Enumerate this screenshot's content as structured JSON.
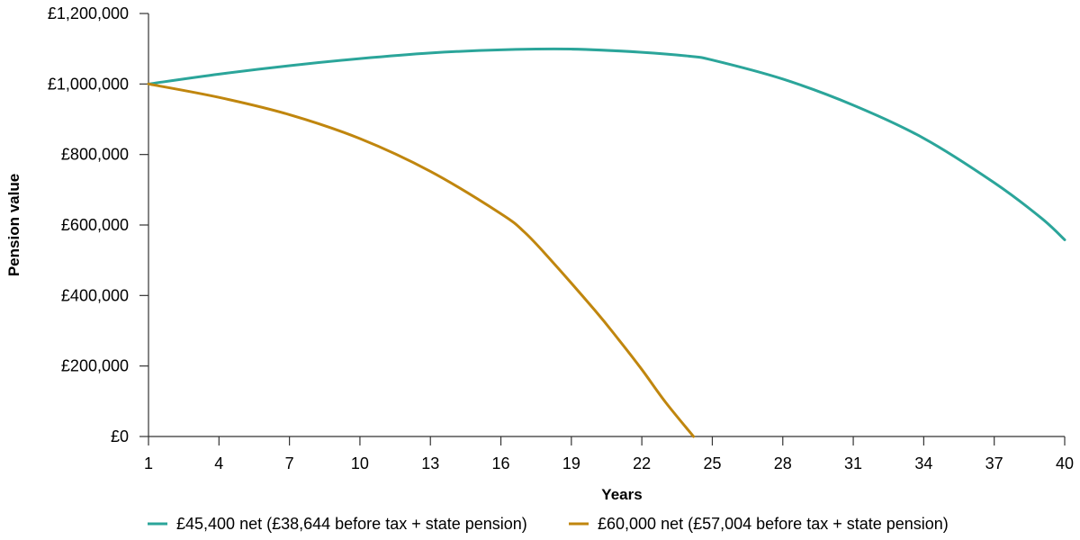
{
  "chart_data": {
    "type": "line",
    "title": "",
    "xlabel": "Years",
    "ylabel": "Pension value",
    "x_ticks": [
      "1",
      "4",
      "7",
      "10",
      "13",
      "16",
      "19",
      "22",
      "25",
      "28",
      "31",
      "34",
      "37",
      "40"
    ],
    "y_ticks": [
      "£0",
      "£200,000",
      "£400,000",
      "£600,000",
      "£800,000",
      "£1,000,000",
      "£1,200,000"
    ],
    "xlim": [
      1,
      40
    ],
    "ylim": [
      0,
      1200000
    ],
    "grid": false,
    "legend_position": "bottom",
    "series": [
      {
        "name": "£45,400 net (£38,644 before tax + state pension)",
        "color": "#2ba59a",
        "points": [
          [
            1,
            1000000
          ],
          [
            4,
            1028000
          ],
          [
            7,
            1052000
          ],
          [
            10,
            1072000
          ],
          [
            13,
            1088000
          ],
          [
            16,
            1097000
          ],
          [
            19,
            1099000
          ],
          [
            22,
            1090000
          ],
          [
            24,
            1079000
          ],
          [
            25,
            1068000
          ],
          [
            28,
            1014000
          ],
          [
            31,
            940000
          ],
          [
            34,
            846000
          ],
          [
            37,
            720000
          ],
          [
            39,
            620000
          ],
          [
            40,
            558000
          ]
        ]
      },
      {
        "name": "£60,000 net (£57,004 before tax + state pension)",
        "color": "#c0860e",
        "points": [
          [
            1,
            1000000
          ],
          [
            4,
            962000
          ],
          [
            7,
            913000
          ],
          [
            10,
            845000
          ],
          [
            13,
            752000
          ],
          [
            16,
            632000
          ],
          [
            17,
            580000
          ],
          [
            18,
            510000
          ],
          [
            20,
            358000
          ],
          [
            21,
            276000
          ],
          [
            22,
            190000
          ],
          [
            23,
            98000
          ],
          [
            24.2,
            0
          ]
        ]
      }
    ]
  }
}
